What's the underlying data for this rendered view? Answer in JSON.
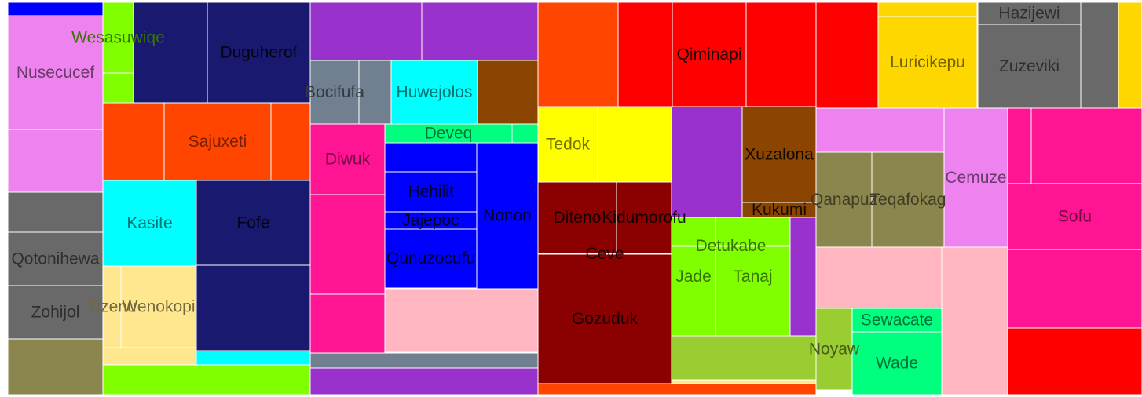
{
  "chart_data": {
    "type": "treemap",
    "groups": [
      {
        "leaves": [
          {
            "label": "",
            "color": "#0000ff"
          },
          {
            "label": "Nusecucef",
            "color": "#ee82ee"
          },
          {
            "label": "",
            "color": "#ee82ee"
          },
          {
            "label": "",
            "color": "#696969"
          },
          {
            "label": "Qotonihewa",
            "color": "#696969"
          },
          {
            "label": "Zohijol",
            "color": "#696969"
          },
          {
            "label": "",
            "color": "#8b864e"
          },
          {
            "label": "Wesasuwiqe",
            "color": "#7fff00"
          },
          {
            "label": "",
            "color": "#7fff00"
          },
          {
            "label": "",
            "color": "#191970"
          },
          {
            "label": "Duguherof",
            "color": "#191970"
          },
          {
            "label": "",
            "color": "#ff4500"
          },
          {
            "label": "Sajuxeti",
            "color": "#ff4500"
          },
          {
            "label": "",
            "color": "#ff4500"
          },
          {
            "label": "Kasite",
            "color": "#00ffff"
          },
          {
            "label": "Tizenu",
            "color": "#ffe78f"
          },
          {
            "label": "Wenokopi",
            "color": "#ffe78f"
          },
          {
            "label": "",
            "color": "#ffe78f"
          },
          {
            "label": "Fofe",
            "color": "#191970"
          },
          {
            "label": "",
            "color": "#191970"
          },
          {
            "label": "",
            "color": "#00ffff"
          },
          {
            "label": "",
            "color": "#7fff00"
          }
        ]
      },
      {
        "leaves": [
          {
            "label": "",
            "color": "#9932cc"
          },
          {
            "label": "",
            "color": "#9932cc"
          },
          {
            "label": "Bocifufa",
            "color": "#708090"
          },
          {
            "label": "",
            "color": "#708090"
          },
          {
            "label": "Huwejolos",
            "color": "#00ffff"
          },
          {
            "label": "",
            "color": "#8b4500"
          },
          {
            "label": "Deveq",
            "color": "#00ff7f"
          },
          {
            "label": "",
            "color": "#00ff7f"
          },
          {
            "label": "Diwuk",
            "color": "#ff1493"
          },
          {
            "label": "",
            "color": "#ff1493"
          },
          {
            "label": "",
            "color": "#ff1493"
          },
          {
            "label": "",
            "color": "#0000ff"
          },
          {
            "label": "Hehilit",
            "color": "#0000ff"
          },
          {
            "label": "Jajepoc",
            "color": "#0000ff"
          },
          {
            "label": "Qunuzocufu",
            "color": "#0000ff"
          },
          {
            "label": "Nonon",
            "color": "#0000ff"
          },
          {
            "label": "",
            "color": "#ffb6c1"
          },
          {
            "label": "",
            "color": "#708090"
          },
          {
            "label": "",
            "color": "#9932cc"
          }
        ]
      },
      {
        "leaves": [
          {
            "label": "",
            "color": "#ff4500"
          },
          {
            "label": "",
            "color": "#ff0000"
          },
          {
            "label": "Qiminapi",
            "color": "#ff0000"
          },
          {
            "label": "",
            "color": "#ff0000"
          },
          {
            "label": "Tedok",
            "color": "#ffff00"
          },
          {
            "label": "",
            "color": "#ffff00"
          },
          {
            "label": "Diteno",
            "color": "#8b0000"
          },
          {
            "label": "Kidumorofu",
            "color": "#8b0000"
          },
          {
            "label": "Ceve",
            "color": "#8b0000"
          },
          {
            "label": "Gozuduk",
            "color": "#8b0000"
          },
          {
            "label": "",
            "color": "#9932cc"
          },
          {
            "label": "Xuzalona",
            "color": "#8b4500"
          },
          {
            "label": "Kukumi",
            "color": "#8b4500"
          },
          {
            "label": "Jade",
            "color": "#7fff00"
          },
          {
            "label": "Tanaj",
            "color": "#7fff00"
          },
          {
            "label": "Detukabe",
            "color": "#7fff00"
          },
          {
            "label": "",
            "color": "#9932cc"
          },
          {
            "label": "",
            "color": "#9acd32"
          },
          {
            "label": "",
            "color": "#ffe78f"
          },
          {
            "label": "",
            "color": "#ff4500"
          }
        ]
      },
      {
        "leaves": [
          {
            "label": "",
            "color": "#ff0000"
          },
          {
            "label": "",
            "color": "#ffd700"
          },
          {
            "label": "Luricikepu",
            "color": "#ffd700"
          },
          {
            "label": "Hazijewi",
            "color": "#696969"
          },
          {
            "label": "Zuzeviki",
            "color": "#696969"
          },
          {
            "label": "",
            "color": "#696969"
          },
          {
            "label": "",
            "color": "#ffd700"
          },
          {
            "label": "",
            "color": "#ee82ee"
          },
          {
            "label": "Qanapuz",
            "color": "#8b864e"
          },
          {
            "label": "Teqafokag",
            "color": "#8b864e"
          },
          {
            "label": "Cemuze",
            "color": "#ee82ee"
          },
          {
            "label": "",
            "color": "#ff1493"
          },
          {
            "label": "",
            "color": "#ff1493"
          },
          {
            "label": "Sofu",
            "color": "#ff1493"
          },
          {
            "label": "",
            "color": "#ff1493"
          },
          {
            "label": "",
            "color": "#ffb6c1"
          },
          {
            "label": "",
            "color": "#ffb6c1"
          },
          {
            "label": "Noyaw",
            "color": "#9acd32"
          },
          {
            "label": "Sewacate",
            "color": "#00ff7f"
          },
          {
            "label": "Wade",
            "color": "#00ff7f"
          },
          {
            "label": "",
            "color": "#ff0000"
          }
        ]
      }
    ]
  }
}
